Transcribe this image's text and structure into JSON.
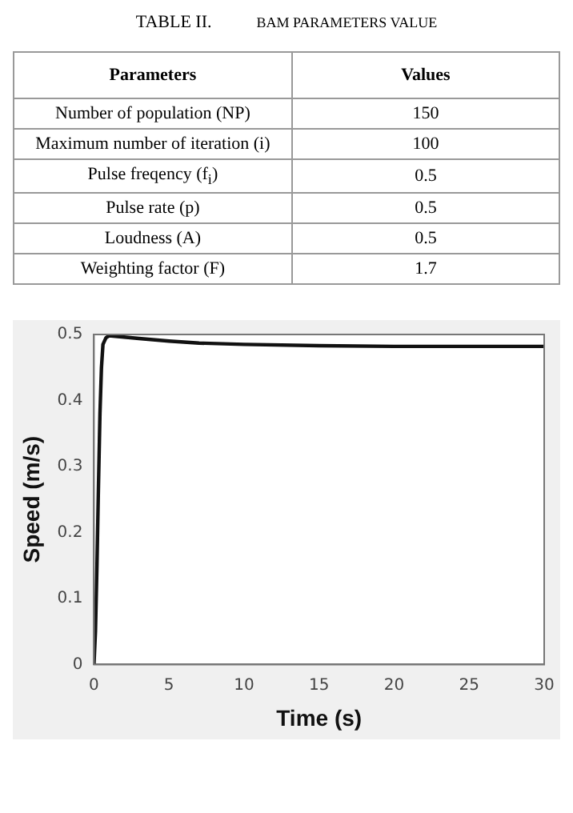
{
  "chart_data": [
    {
      "type": "other",
      "title": "TABLE II.",
      "subtitle": "BAM PARAMETERS VALUE",
      "xlabel": "Parameters",
      "ylabel": "Values",
      "categories": [
        "Number of population (NP)",
        "Maximum number of iteration (i)",
        "Pulse freqency (f$_{i}$)",
        "Pulse rate (p)",
        "Loudness (A)",
        "Weighting factor (F)"
      ],
      "values": [
        150,
        100,
        0.5,
        0.5,
        0.5,
        1.7
      ],
      "data_labels": true
    },
    {
      "type": "line",
      "xlabel": "Time (s)",
      "ylabel": "Speed (m/s)",
      "xlim": [
        0,
        30
      ],
      "ylim": [
        0,
        0.5
      ],
      "xticks": [
        0,
        5,
        10,
        15,
        20,
        25,
        30
      ],
      "yticks": [
        0,
        0.1,
        0.2,
        0.3,
        0.4,
        0.5
      ],
      "grid": false,
      "legend": false,
      "marker": "none",
      "line_style": "solid",
      "series": [
        {
          "color": "#111111",
          "x": [
            0,
            0.1,
            0.2,
            0.3,
            0.4,
            0.5,
            0.6,
            0.8,
            1,
            2,
            3,
            5,
            7,
            10,
            15,
            20,
            30
          ],
          "values": [
            0,
            0.05,
            0.15,
            0.27,
            0.38,
            0.45,
            0.485,
            0.495,
            0.498,
            0.496,
            0.494,
            0.49,
            0.487,
            0.485,
            0.483,
            0.482,
            0.482
          ]
        }
      ]
    }
  ]
}
